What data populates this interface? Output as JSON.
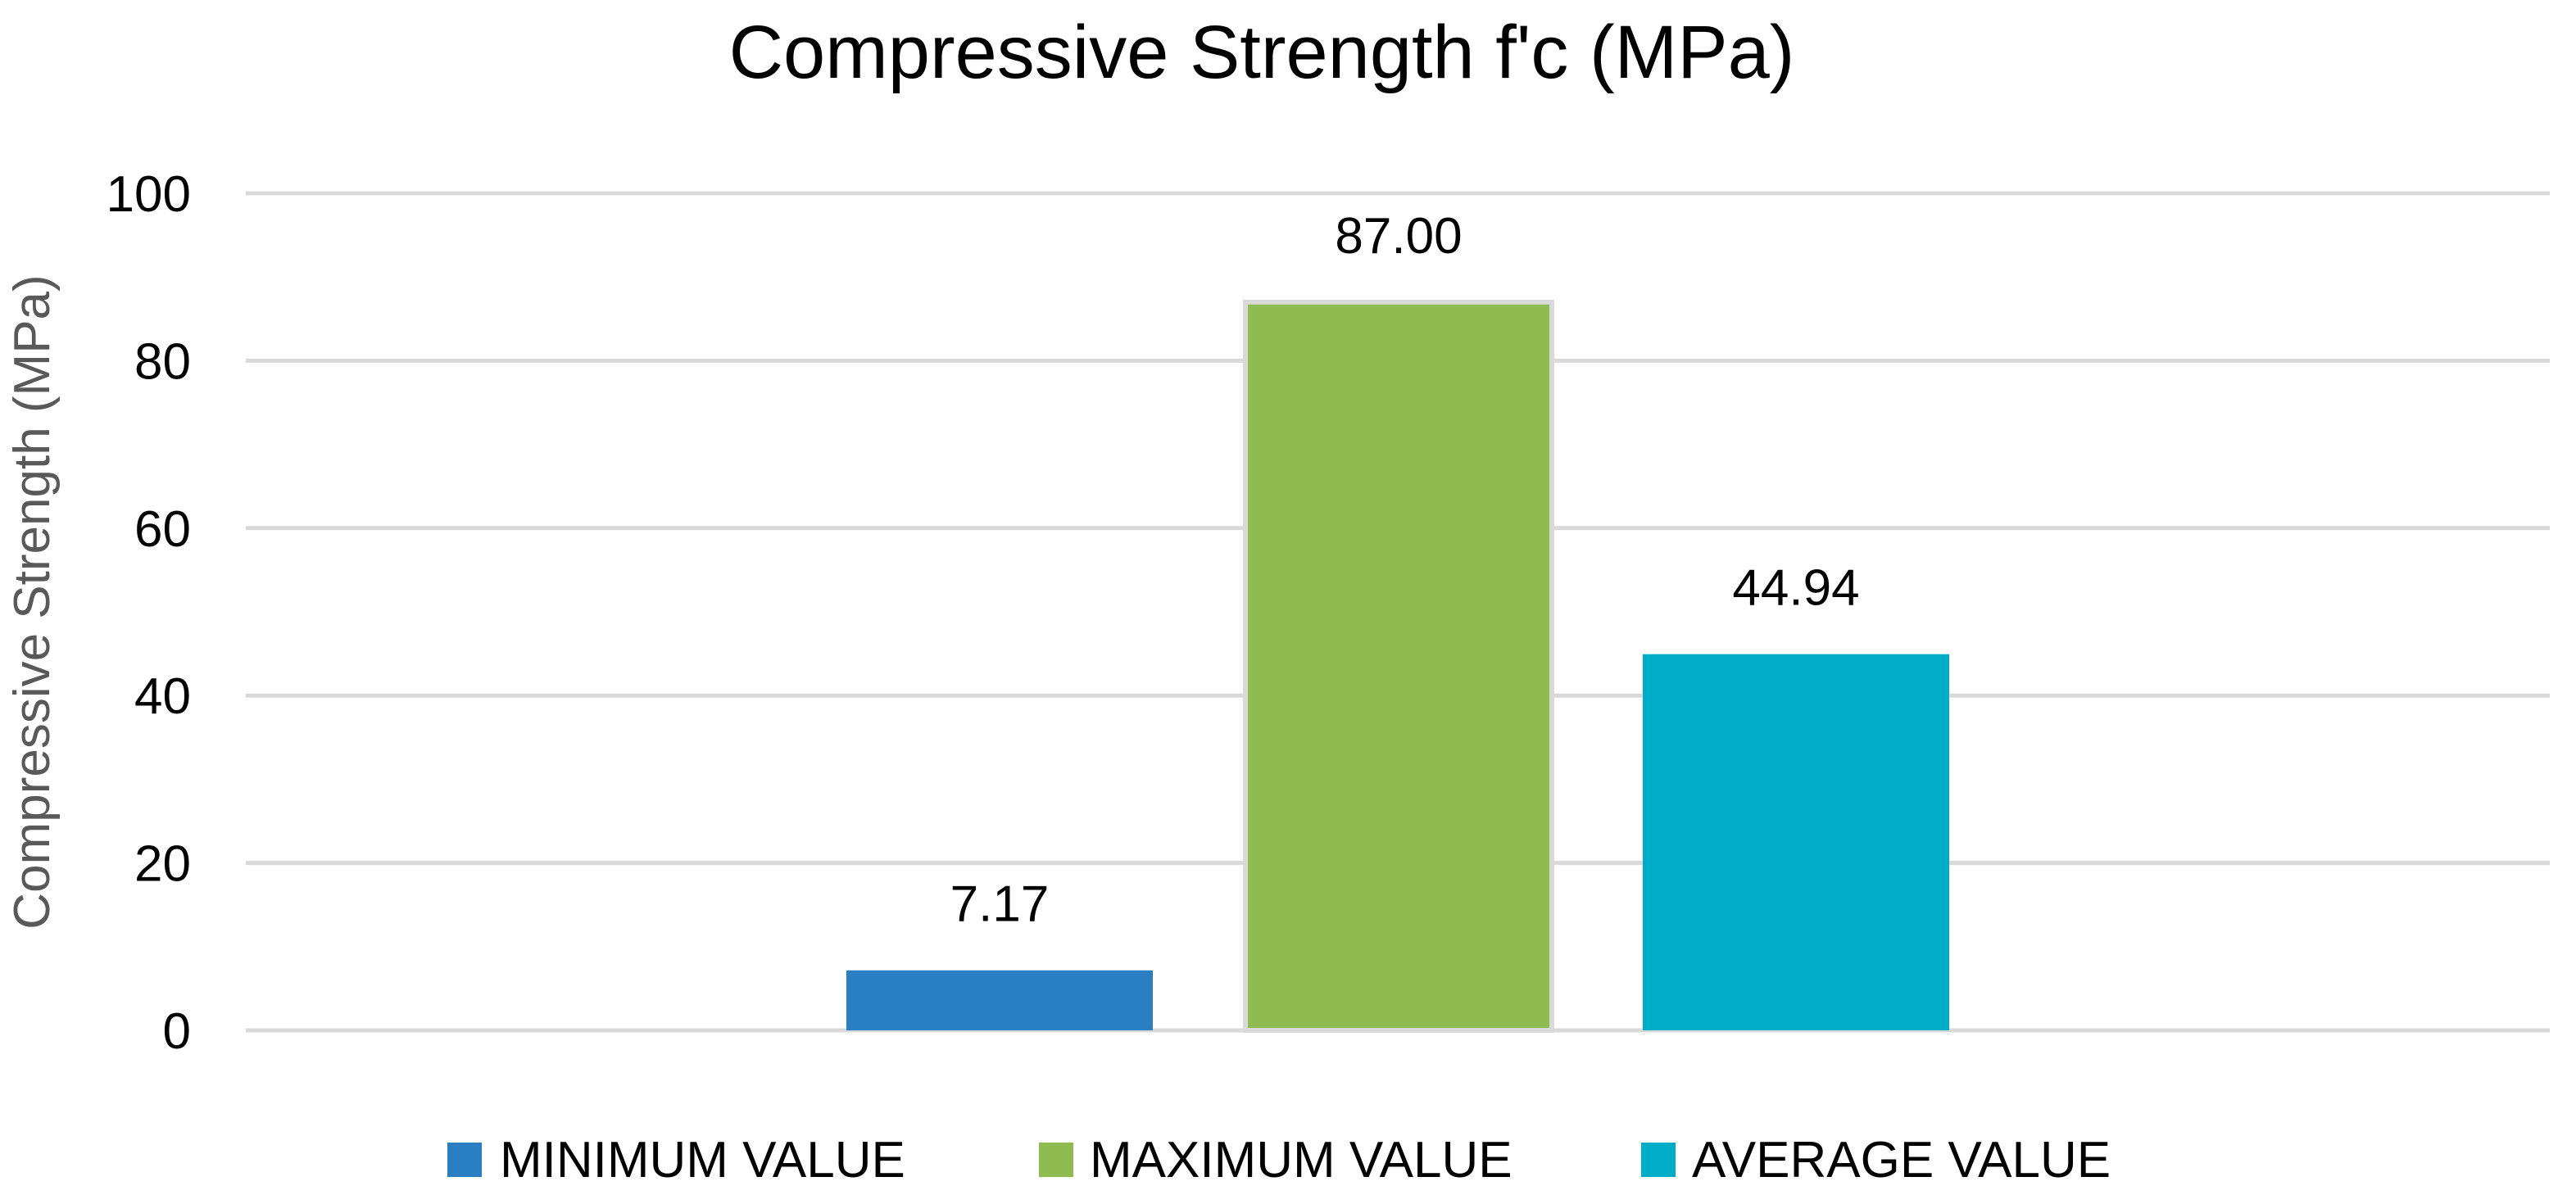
{
  "chart_data": {
    "type": "bar",
    "title": "Compressive Strength f'c (MPa)",
    "xlabel": "",
    "ylabel": "Compressive Strength (MPa)",
    "ylim": [
      0,
      100
    ],
    "yticks": [
      0,
      20,
      40,
      60,
      80,
      100
    ],
    "grid": true,
    "legend_position": "bottom",
    "categories": [
      ""
    ],
    "series": [
      {
        "name": "MINIMUM VALUE",
        "values": [
          7.17
        ],
        "label": "7.17",
        "color": "#2A7FC2"
      },
      {
        "name": "MAXIMUM VALUE",
        "values": [
          87.0
        ],
        "label": "87.00",
        "color": "#8EBC51"
      },
      {
        "name": "AVERAGE VALUE",
        "values": [
          44.94
        ],
        "label": "44.94",
        "color": "#00ADC8"
      }
    ],
    "colors": {
      "grid": "#D9D9D9",
      "axis_text": "#000000",
      "ylabel_text": "#595959",
      "max_bar_border": "#D9D9D9"
    }
  }
}
